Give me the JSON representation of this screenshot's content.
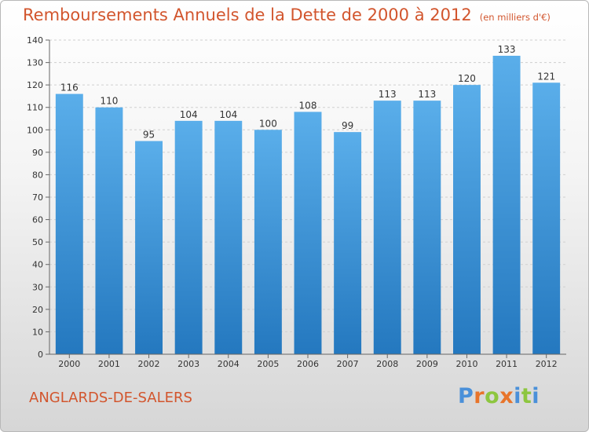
{
  "title": {
    "main": "Remboursements Annuels de la Dette de 2000 à 2012",
    "unit": "(en milliers d'€)"
  },
  "commune": "ANGLARDS-DE-SALERS",
  "logo": {
    "text": "Proxiti",
    "letters": [
      {
        "ch": "P",
        "color": "#4a90d9"
      },
      {
        "ch": "r",
        "color": "#e8742a"
      },
      {
        "ch": "o",
        "color": "#8dc63f"
      },
      {
        "ch": "x",
        "color": "#e8742a"
      },
      {
        "ch": "i",
        "color": "#4a90d9"
      },
      {
        "ch": "t",
        "color": "#8dc63f"
      },
      {
        "ch": "i",
        "color": "#4a90d9"
      }
    ]
  },
  "colors": {
    "title": "#d2552d",
    "bar_top": "#5aaeea",
    "bar_bottom": "#2478bf",
    "grid": "#cfcfcf",
    "axis_text": "#333333"
  },
  "chart_data": {
    "type": "bar",
    "title": "Remboursements Annuels de la Dette de 2000 à 2012",
    "categories": [
      "2000",
      "2001",
      "2002",
      "2003",
      "2004",
      "2005",
      "2006",
      "2007",
      "2008",
      "2009",
      "2010",
      "2011",
      "2012"
    ],
    "values": [
      116,
      110,
      95,
      104,
      104,
      100,
      108,
      99,
      113,
      113,
      120,
      133,
      121
    ],
    "ylim": [
      0,
      140
    ],
    "yticks": [
      0,
      10,
      20,
      30,
      40,
      50,
      60,
      70,
      80,
      90,
      100,
      110,
      120,
      130,
      140
    ],
    "grid": true,
    "data_labels": true
  }
}
